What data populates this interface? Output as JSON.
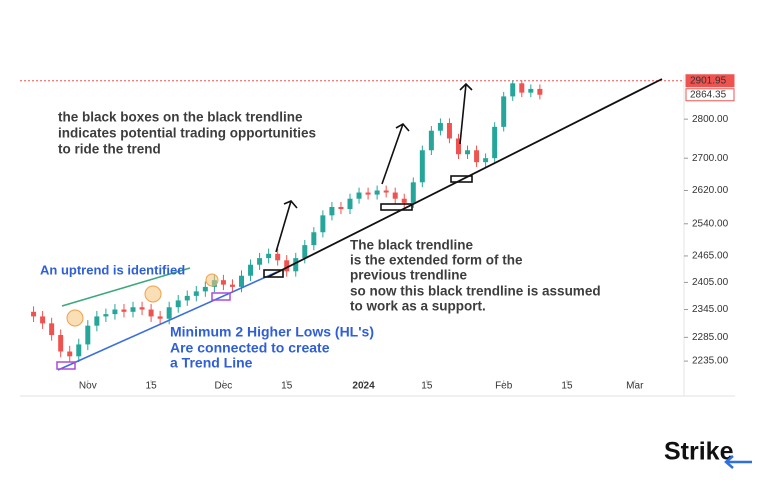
{
  "chart_data": {
    "type": "candlestick",
    "log_scale": true,
    "up_color": "#26a69a",
    "down_color": "#ef5350",
    "x": [
      19,
      21,
      23,
      25,
      27,
      29,
      31,
      33,
      35,
      37,
      39,
      41,
      43,
      45,
      47,
      49,
      51,
      53,
      55,
      57,
      59,
      61,
      63,
      65,
      67,
      69,
      71,
      73,
      75,
      77,
      79,
      81,
      83,
      85,
      87,
      89,
      91,
      93,
      95,
      97,
      99,
      101,
      103,
      105,
      107,
      109,
      111,
      113,
      115,
      117,
      119,
      121,
      123,
      125,
      127,
      129,
      131
    ],
    "open": [
      2340,
      2330,
      2315,
      2290,
      2255,
      2245,
      2270,
      2310,
      2330,
      2335,
      2345,
      2340,
      2350,
      2345,
      2330,
      2325,
      2350,
      2365,
      2375,
      2385,
      2395,
      2410,
      2400,
      2395,
      2420,
      2445,
      2460,
      2470,
      2455,
      2430,
      2460,
      2490,
      2520,
      2560,
      2580,
      2575,
      2600,
      2615,
      2610,
      2620,
      2615,
      2600,
      2590,
      2640,
      2720,
      2770,
      2790,
      2750,
      2710,
      2720,
      2690,
      2700,
      2780,
      2860,
      2895,
      2870,
      2880
    ],
    "high": [
      2352,
      2342,
      2327,
      2302,
      2267,
      2282,
      2322,
      2342,
      2347,
      2357,
      2357,
      2362,
      2362,
      2357,
      2342,
      2362,
      2377,
      2387,
      2397,
      2407,
      2422,
      2422,
      2412,
      2432,
      2457,
      2472,
      2482,
      2482,
      2467,
      2472,
      2502,
      2532,
      2572,
      2592,
      2592,
      2612,
      2627,
      2627,
      2632,
      2632,
      2627,
      2612,
      2652,
      2732,
      2782,
      2802,
      2802,
      2762,
      2732,
      2732,
      2712,
      2792,
      2872,
      2903,
      2903,
      2892,
      2892
    ],
    "low": [
      2318,
      2303,
      2278,
      2243,
      2233,
      2233,
      2258,
      2298,
      2318,
      2323,
      2328,
      2328,
      2333,
      2318,
      2313,
      2313,
      2338,
      2353,
      2363,
      2373,
      2383,
      2388,
      2383,
      2383,
      2408,
      2433,
      2448,
      2443,
      2418,
      2418,
      2448,
      2478,
      2508,
      2548,
      2563,
      2563,
      2588,
      2598,
      2598,
      2603,
      2588,
      2578,
      2578,
      2628,
      2708,
      2758,
      2738,
      2698,
      2698,
      2678,
      2678,
      2688,
      2768,
      2848,
      2858,
      2858,
      2852
    ],
    "close": [
      2330,
      2315,
      2290,
      2255,
      2245,
      2270,
      2310,
      2330,
      2335,
      2345,
      2340,
      2350,
      2345,
      2330,
      2325,
      2350,
      2365,
      2375,
      2385,
      2395,
      2410,
      2400,
      2395,
      2420,
      2445,
      2460,
      2470,
      2455,
      2430,
      2460,
      2490,
      2520,
      2560,
      2580,
      2575,
      2600,
      2615,
      2610,
      2620,
      2615,
      2600,
      2590,
      2640,
      2720,
      2770,
      2790,
      2750,
      2710,
      2720,
      2690,
      2700,
      2780,
      2860,
      2895,
      2870,
      2880,
      2864.35
    ],
    "xlim": [
      16,
      162
    ],
    "xticks": [
      {
        "value": 31,
        "label": "Nov"
      },
      {
        "value": 45,
        "label": "15"
      },
      {
        "value": 61,
        "label": "Dec"
      },
      {
        "value": 75,
        "label": "15"
      },
      {
        "value": 92,
        "label": "2024"
      },
      {
        "value": 106,
        "label": "15"
      },
      {
        "value": 123,
        "label": "Feb"
      },
      {
        "value": 137,
        "label": "15"
      },
      {
        "value": 152,
        "label": "Mar"
      }
    ],
    "ylim": [
      2196,
      2904
    ],
    "yticks": [
      {
        "value": 2800,
        "label": "2800.00"
      },
      {
        "value": 2700,
        "label": "2700.00"
      },
      {
        "value": 2620,
        "label": "2620.00"
      },
      {
        "value": 2540,
        "label": "2540.00"
      },
      {
        "value": 2465,
        "label": "2465.00"
      },
      {
        "value": 2405,
        "label": "2405.00"
      },
      {
        "value": 2345,
        "label": "2345.00"
      },
      {
        "value": 2285,
        "label": "2285.00"
      },
      {
        "value": 2235,
        "label": "2235.00"
      }
    ],
    "price_labels": [
      {
        "value": 2901.95,
        "label": "2901.95"
      },
      {
        "value": 2864.35,
        "label": "2864.35"
      }
    ],
    "annotations": [
      {
        "lines": [
          "the black boxes on the black trendline",
          "indicates potential trading opportunities",
          "to ride the trend"
        ]
      },
      {
        "lines": [
          "An uptrend is identified"
        ]
      },
      {
        "lines": [
          "Minimum 2 Higher Lows (HL's)",
          "Are connected to create",
          "a Trend Line"
        ]
      },
      {
        "lines": [
          "The black trendline",
          "is the extended form of the",
          "previous trendline",
          "so now this black trendline is assumed",
          "to work as a support."
        ]
      }
    ]
  },
  "logo": "Strike"
}
